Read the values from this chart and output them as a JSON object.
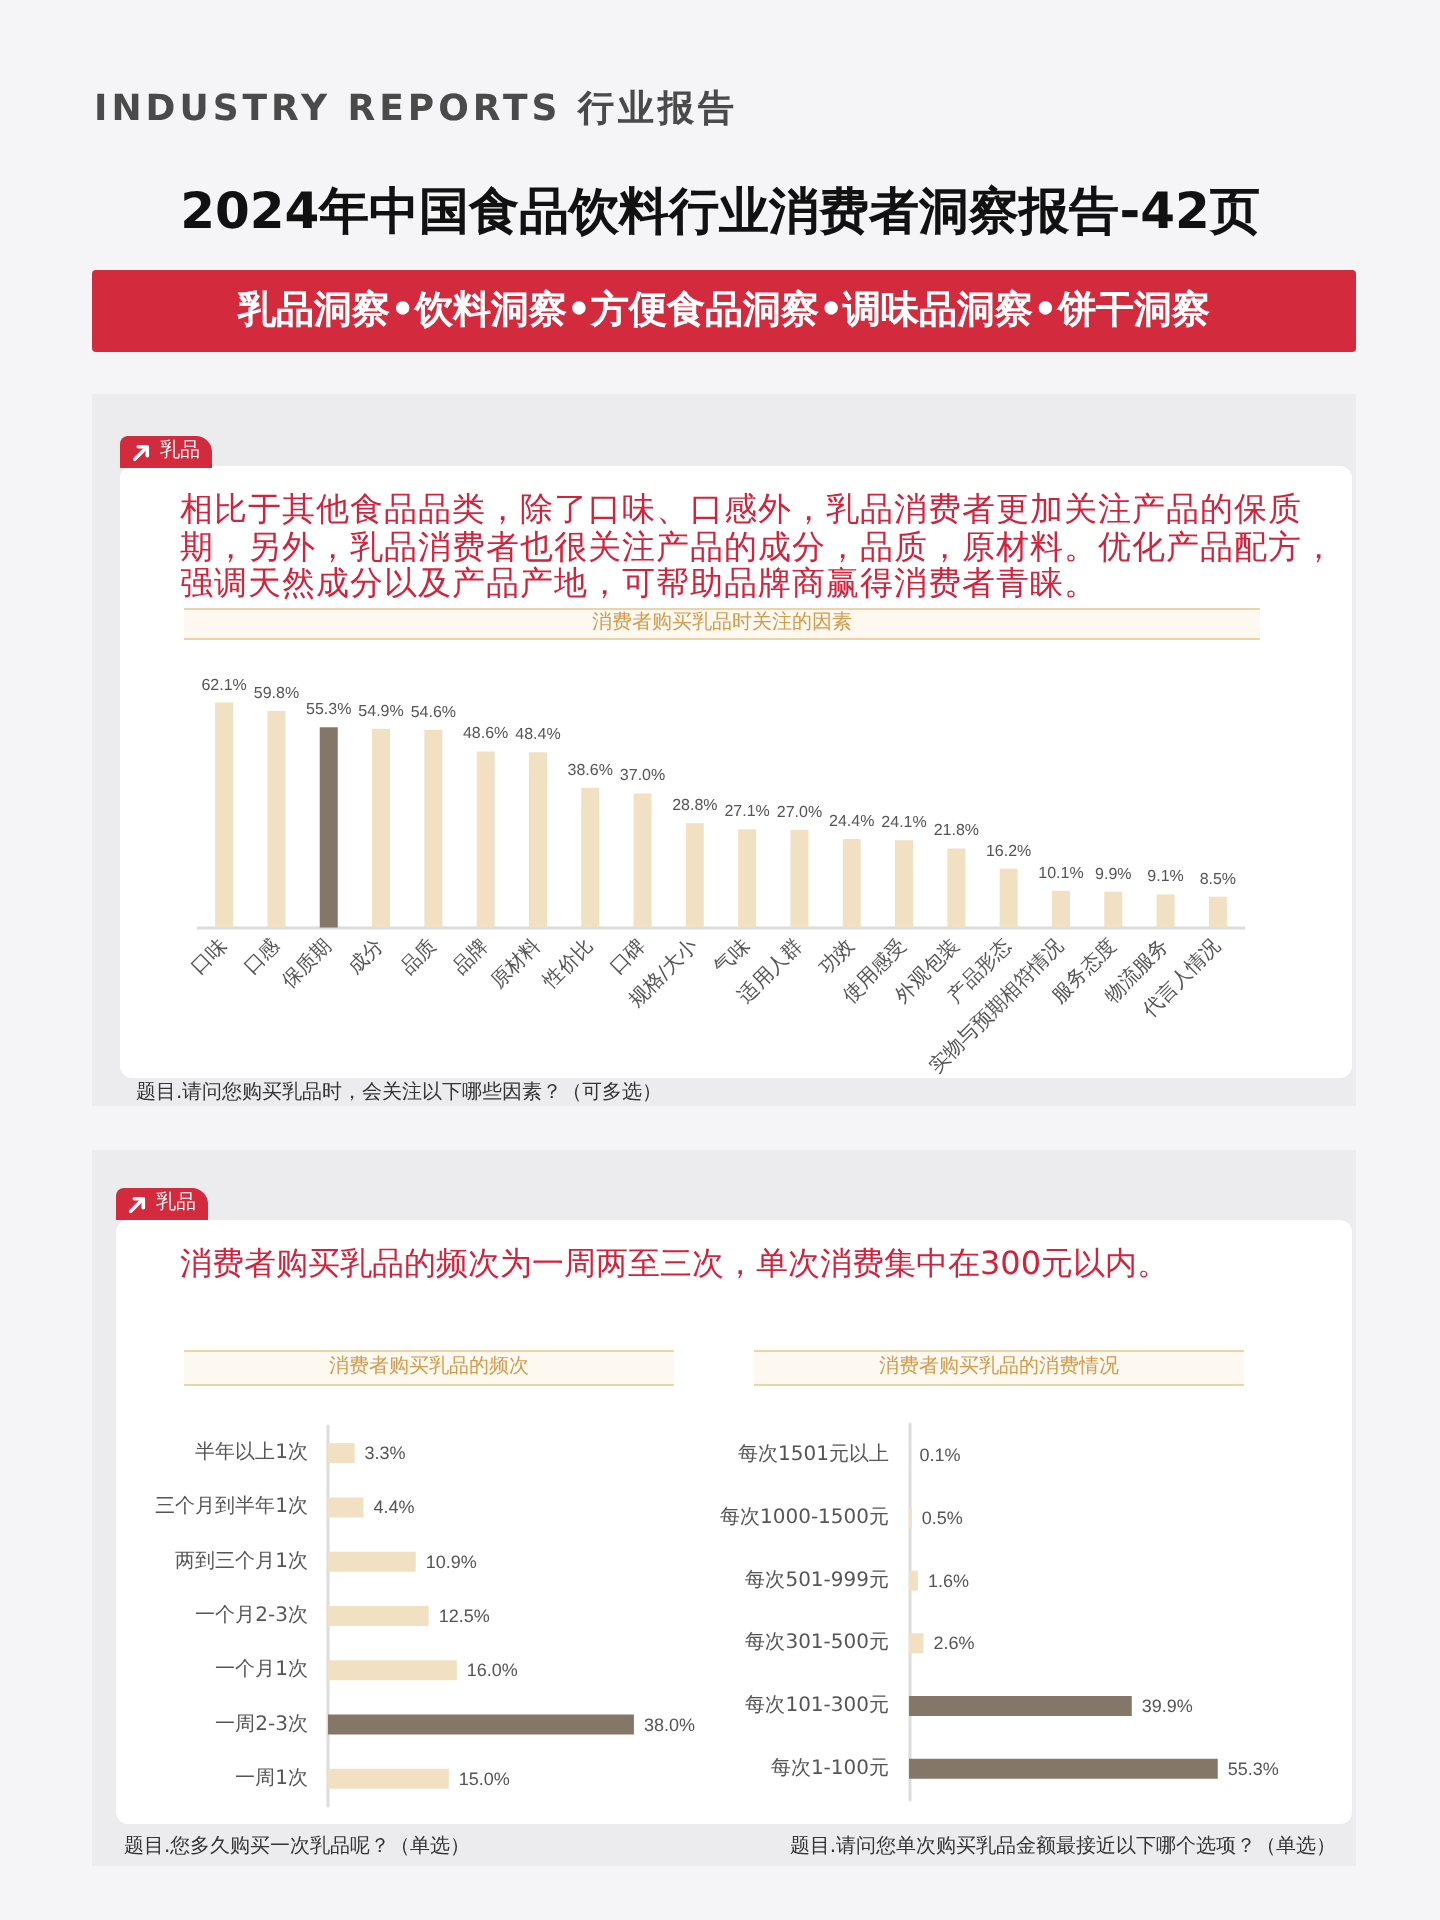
{
  "chart_data": [
    {
      "type": "bar",
      "title": "消费者购买乳品时关注的因素",
      "categories": [
        "口味",
        "口感",
        "保质期",
        "成分",
        "品质",
        "品牌",
        "原材料",
        "性价比",
        "口碑",
        "规格/大小",
        "气味",
        "适用人群",
        "功效",
        "使用感受",
        "外观包装",
        "产品形态",
        "实物与预期相符情况",
        "服务态度",
        "物流服务",
        "代言人情况"
      ],
      "values": [
        62.1,
        59.8,
        55.3,
        54.9,
        54.6,
        48.6,
        48.4,
        38.6,
        37.0,
        28.8,
        27.1,
        27.0,
        24.4,
        24.1,
        21.8,
        16.2,
        10.1,
        9.9,
        9.1,
        8.5
      ],
      "colors": [
        "#f1e0c2",
        "#f1e0c2",
        "#857767",
        "#f1e0c2",
        "#f1e0c2",
        "#f1e0c2",
        "#f1e0c2",
        "#f1e0c2",
        "#f1e0c2",
        "#f1e0c2",
        "#f1e0c2",
        "#f1e0c2",
        "#f1e0c2",
        "#f1e0c2",
        "#f1e0c2",
        "#f1e0c2",
        "#f1e0c2",
        "#f1e0c2",
        "#f1e0c2",
        "#f1e0c2"
      ],
      "value_labels": [
        "62.1%",
        "59.8%",
        "55.3%",
        "54.9%",
        "54.6%",
        "48.6%",
        "48.4%",
        "38.6%",
        "37.0%",
        "28.8%",
        "27.1%",
        "27.0%",
        "24.4%",
        "24.1%",
        "21.8%",
        "16.2%",
        "10.1%",
        "9.9%",
        "9.1%",
        "8.5%"
      ],
      "annotations": [
        "INDUSTRY REPORTS 行业报告",
        "2024年中国食品饮料行业消费者洞察报告-42页",
        "乳品洞察•饮料洞察•方便食品洞察•调味品洞察•饼干洞察",
        "乳品",
        "相比于其他食品品类，除了口味、口感外，乳品消费者更加关注产品的保质期，另外，乳品消费者也很关注产品的成分，品质，原材料。优化产品配方，强调天然成分以及产品产地，可帮助品牌商赢得消费者青睐。",
        "题目.请问您购买乳品时，会关注以下哪些因素？（可多选）"
      ]
    },
    {
      "type": "bar",
      "orientation": "horizontal",
      "title": "消费者购买乳品的频次",
      "categories": [
        "半年以上1次",
        "三个月到半年1次",
        "两到三个月1次",
        "一个月2-3次",
        "一个月1次",
        "一周2-3次",
        "一周1次"
      ],
      "values": [
        3.3,
        4.4,
        10.9,
        12.5,
        16.0,
        38.0,
        15.0
      ],
      "colors": [
        "#f1e0c2",
        "#f1e0c2",
        "#f1e0c2",
        "#f1e0c2",
        "#f1e0c2",
        "#857767",
        "#f1e0c2"
      ],
      "value_labels": [
        "3.3%",
        "4.4%",
        "10.9%",
        "12.5%",
        "16.0%",
        "38.0%",
        "15.0%"
      ],
      "annotations": [
        "乳品",
        "消费者购买乳品的频次为一周两至三次，单次消费集中在300元以内。",
        "题目.您多久购买一次乳品呢？（单选）"
      ]
    },
    {
      "type": "bar",
      "orientation": "horizontal",
      "title": "消费者购买乳品的消费情况",
      "categories": [
        "每次1501元以上",
        "每次1000-1500元",
        "每次501-999元",
        "每次301-500元",
        "每次101-300元",
        "每次1-100元"
      ],
      "values": [
        0.1,
        0.5,
        1.6,
        2.6,
        39.9,
        55.3
      ],
      "colors": [
        "#f1e0c2",
        "#f1e0c2",
        "#f1e0c2",
        "#f1e0c2",
        "#857767",
        "#857767"
      ],
      "value_labels": [
        "0.1%",
        "0.5%",
        "1.6%",
        "2.6%",
        "39.9%",
        "55.3%"
      ],
      "annotations": [
        "题目.请问您单次购买乳品金额最接近以下哪个选项？（单选）"
      ]
    }
  ]
}
